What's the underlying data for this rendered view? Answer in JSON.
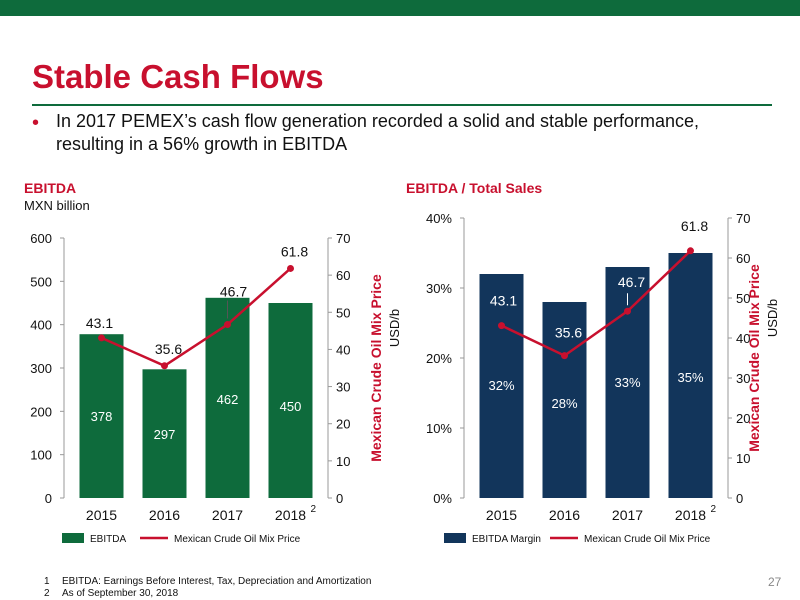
{
  "title": "Stable Cash Flows",
  "bullet": {
    "symbol": "•",
    "text": "In 2017 PEMEX’s cash flow generation recorded a solid and stable performance, resulting in a 56% growth in EBITDA"
  },
  "footnotes": [
    {
      "num": "1",
      "text": "EBITDA: Earnings Before Interest, Tax, Depreciation and Amortization"
    },
    {
      "num": "2",
      "text": "As of September 30, 2018"
    }
  ],
  "page_number": "27",
  "colors": {
    "brand_green": "#0e6b3c",
    "brand_red": "#c8102e",
    "navy": "#12355b"
  },
  "chart_data": [
    {
      "type": "bar",
      "title": "EBITDA",
      "subtitle": "MXN billion",
      "categories": [
        "2015",
        "2016",
        "2017",
        "2018"
      ],
      "category_footnotes": [
        "",
        "",
        "",
        "2"
      ],
      "bar_color": "#0e6b3c",
      "y_left": {
        "ticks": [
          "0",
          "100",
          "200",
          "300",
          "400",
          "500",
          "600"
        ],
        "range": [
          0,
          600
        ]
      },
      "y_right": {
        "label": "Mexican Crude Oil Mix Price",
        "unit": "USD/b",
        "ticks": [
          "0",
          "10",
          "20",
          "30",
          "40",
          "50",
          "60",
          "70"
        ],
        "range": [
          0,
          70
        ]
      },
      "series": [
        {
          "name": "EBITDA",
          "kind": "bar",
          "axis": "left",
          "values": [
            378,
            297,
            462,
            450
          ],
          "labels": [
            "378",
            "297",
            "462",
            "450"
          ]
        },
        {
          "name": "Mexican Crude Oil Mix Price",
          "kind": "line",
          "axis": "right",
          "color": "#c8102e",
          "values": [
            43.1,
            35.6,
            46.7,
            61.8
          ],
          "labels": [
            "43.1",
            "35.6",
            "46.7",
            "61.8"
          ]
        }
      ],
      "legend": {
        "placement": "bottom"
      }
    },
    {
      "type": "bar",
      "title": "EBITDA / Total Sales",
      "subtitle": "",
      "categories": [
        "2015",
        "2016",
        "2017",
        "2018"
      ],
      "category_footnotes": [
        "",
        "",
        "",
        "2"
      ],
      "bar_color": "#12355b",
      "y_left": {
        "ticks": [
          "0%",
          "10%",
          "20%",
          "30%",
          "40%"
        ],
        "range": [
          0,
          40
        ]
      },
      "y_right": {
        "label": "Mexican Crude Oil Mix Price",
        "unit": "USD/b",
        "ticks": [
          "0",
          "10",
          "20",
          "30",
          "40",
          "50",
          "60",
          "70"
        ],
        "range": [
          0,
          70
        ]
      },
      "series": [
        {
          "name": "EBITDA Margin",
          "kind": "bar",
          "axis": "left",
          "values": [
            32,
            28,
            33,
            35
          ],
          "labels": [
            "32%",
            "28%",
            "33%",
            "35%"
          ]
        },
        {
          "name": "Mexican Crude Oil Mix Price",
          "kind": "line",
          "axis": "right",
          "color": "#c8102e",
          "values": [
            43.1,
            35.6,
            46.7,
            61.8
          ],
          "labels": [
            "43.1",
            "35.6",
            "46.7",
            "61.8"
          ]
        }
      ],
      "legend": {
        "placement": "bottom"
      }
    }
  ]
}
